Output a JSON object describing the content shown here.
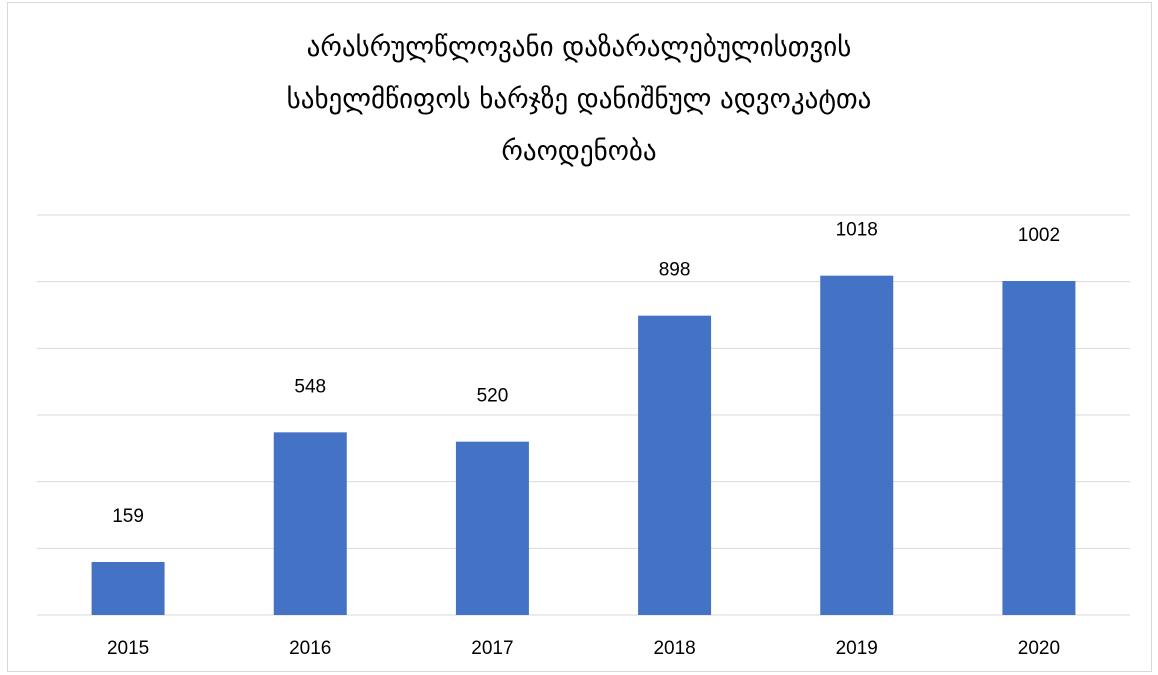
{
  "chart_data": {
    "type": "bar",
    "title_lines": [
      "არასრულწლოვანი დაზარალებულისთვის",
      "სახელმწიფოს ხარჯზე დანიშნულ ადვოკატთა",
      "რაოდენობა"
    ],
    "categories": [
      "2015",
      "2016",
      "2017",
      "2018",
      "2019",
      "2020"
    ],
    "values": [
      159,
      548,
      520,
      898,
      1018,
      1002
    ],
    "data_labels": [
      "159",
      "548",
      "520",
      "898",
      "1018",
      "1002"
    ],
    "xlabel": "",
    "ylabel": "",
    "ylim": [
      0,
      1200
    ],
    "grid": true,
    "legend": "none",
    "bar_color": "#4472C4",
    "grid_color": "#d9d9d9"
  }
}
